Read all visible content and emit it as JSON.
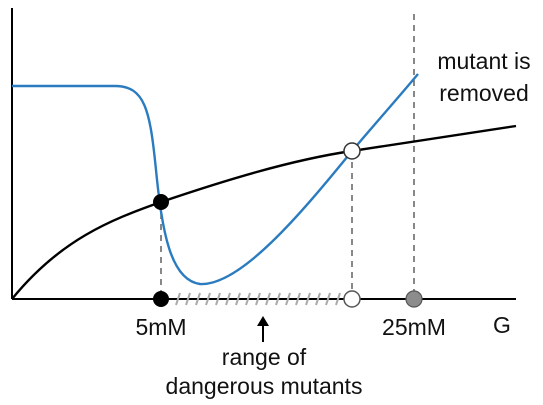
{
  "labels": {
    "x_axis": "G",
    "tick_5mM": "5mM",
    "tick_25mM": "25mM",
    "annotation_line1": "mutant is",
    "annotation_line2": "removed",
    "range_line1": "range of",
    "range_line2": "dangerous mutants"
  },
  "colors": {
    "blue_curve": "#2a7bbf",
    "black_curve": "#000000",
    "axis": "#000000",
    "dashed_line": "#555555",
    "hatch": "#aaaaaa",
    "grey_marker": "#8c8c8c"
  }
}
